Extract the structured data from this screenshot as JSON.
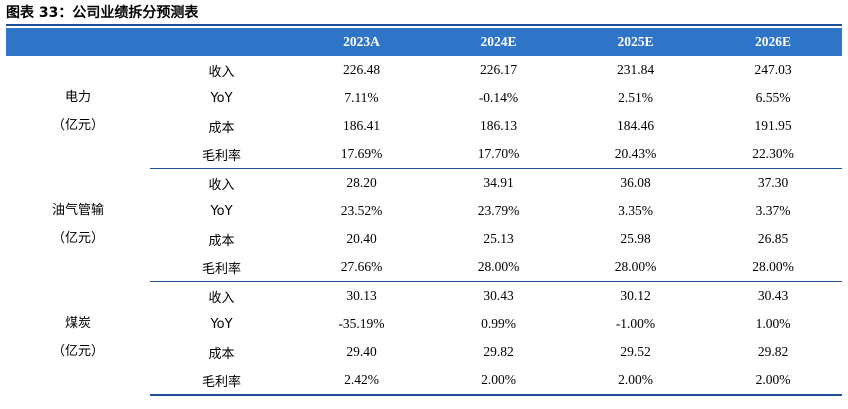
{
  "caption": "图表 33：公司业绩拆分预测表",
  "header": {
    "columns": [
      "",
      "",
      "2023A",
      "2024E",
      "2025E",
      "2026E"
    ]
  },
  "segments": [
    {
      "name": "电力",
      "unit": "（亿元）",
      "rows": [
        {
          "metric": "收入",
          "values": [
            "226.48",
            "226.17",
            "231.84",
            "247.03"
          ]
        },
        {
          "metric": "YoY",
          "values": [
            "7.11%",
            "-0.14%",
            "2.51%",
            "6.55%"
          ]
        },
        {
          "metric": "成本",
          "values": [
            "186.41",
            "186.13",
            "184.46",
            "191.95"
          ]
        },
        {
          "metric": "毛利率",
          "values": [
            "17.69%",
            "17.70%",
            "20.43%",
            "22.30%"
          ]
        }
      ]
    },
    {
      "name": "油气管输",
      "unit": "（亿元）",
      "rows": [
        {
          "metric": "收入",
          "values": [
            "28.20",
            "34.91",
            "36.08",
            "37.30"
          ]
        },
        {
          "metric": "YoY",
          "values": [
            "23.52%",
            "23.79%",
            "3.35%",
            "3.37%"
          ]
        },
        {
          "metric": "成本",
          "values": [
            "20.40",
            "25.13",
            "25.98",
            "26.85"
          ]
        },
        {
          "metric": "毛利率",
          "values": [
            "27.66%",
            "28.00%",
            "28.00%",
            "28.00%"
          ]
        }
      ]
    },
    {
      "name": "煤炭",
      "unit": "（亿元）",
      "rows": [
        {
          "metric": "收入",
          "values": [
            "30.13",
            "30.43",
            "30.12",
            "30.43"
          ]
        },
        {
          "metric": "YoY",
          "values": [
            "-35.19%",
            "0.99%",
            "-1.00%",
            "1.00%"
          ]
        },
        {
          "metric": "成本",
          "values": [
            "29.40",
            "29.82",
            "29.52",
            "29.82"
          ]
        },
        {
          "metric": "毛利率",
          "values": [
            "2.42%",
            "2.00%",
            "2.00%",
            "2.00%"
          ]
        }
      ]
    }
  ]
}
